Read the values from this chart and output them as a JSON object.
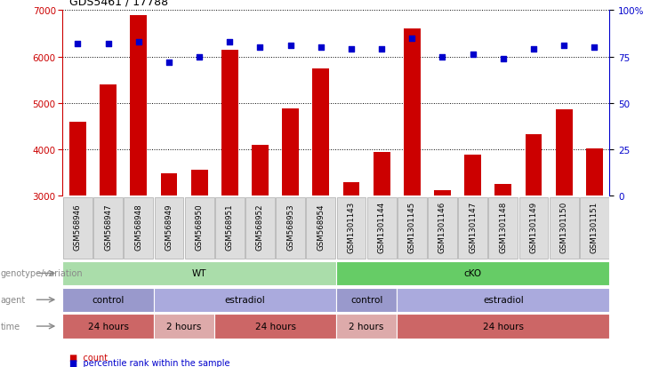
{
  "title": "GDS5461 / 17788",
  "samples": [
    "GSM568946",
    "GSM568947",
    "GSM568948",
    "GSM568949",
    "GSM568950",
    "GSM568951",
    "GSM568952",
    "GSM568953",
    "GSM568954",
    "GSM1301143",
    "GSM1301144",
    "GSM1301145",
    "GSM1301146",
    "GSM1301147",
    "GSM1301148",
    "GSM1301149",
    "GSM1301150",
    "GSM1301151"
  ],
  "counts": [
    4600,
    5400,
    6900,
    3480,
    3560,
    6150,
    4100,
    4880,
    5750,
    3280,
    3950,
    6600,
    3120,
    3880,
    3260,
    4320,
    4870,
    4020
  ],
  "percentiles": [
    82,
    82,
    83,
    72,
    75,
    83,
    80,
    81,
    80,
    79,
    79,
    85,
    75,
    76,
    74,
    79,
    81,
    80
  ],
  "bar_color": "#cc0000",
  "dot_color": "#0000cc",
  "ylim_left": [
    3000,
    7000
  ],
  "ylim_right": [
    0,
    100
  ],
  "yticks_left": [
    3000,
    4000,
    5000,
    6000,
    7000
  ],
  "yticks_right": [
    0,
    25,
    50,
    75,
    100
  ],
  "yticklabels_right": [
    "0",
    "25",
    "50",
    "75",
    "100%"
  ],
  "grid_values": [
    4000,
    5000,
    6000
  ],
  "xlim": [
    -0.5,
    17.5
  ],
  "annotation_rows": [
    {
      "label": "genotype/variation",
      "groups": [
        {
          "text": "WT",
          "start": 0,
          "end": 9,
          "color": "#aaddaa"
        },
        {
          "text": "cKO",
          "start": 9,
          "end": 18,
          "color": "#66cc66"
        }
      ]
    },
    {
      "label": "agent",
      "groups": [
        {
          "text": "control",
          "start": 0,
          "end": 3,
          "color": "#9999cc"
        },
        {
          "text": "estradiol",
          "start": 3,
          "end": 9,
          "color": "#aaaadd"
        },
        {
          "text": "control",
          "start": 9,
          "end": 11,
          "color": "#9999cc"
        },
        {
          "text": "estradiol",
          "start": 11,
          "end": 18,
          "color": "#aaaadd"
        }
      ]
    },
    {
      "label": "time",
      "groups": [
        {
          "text": "24 hours",
          "start": 0,
          "end": 3,
          "color": "#cc6666"
        },
        {
          "text": "2 hours",
          "start": 3,
          "end": 5,
          "color": "#ddaaaa"
        },
        {
          "text": "24 hours",
          "start": 5,
          "end": 9,
          "color": "#cc6666"
        },
        {
          "text": "2 hours",
          "start": 9,
          "end": 11,
          "color": "#ddaaaa"
        },
        {
          "text": "24 hours",
          "start": 11,
          "end": 18,
          "color": "#cc6666"
        }
      ]
    }
  ],
  "legend": [
    {
      "label": "count",
      "color": "#cc0000"
    },
    {
      "label": "percentile rank within the sample",
      "color": "#0000cc"
    }
  ],
  "sample_box_color": "#dddddd",
  "sample_box_edge": "#aaaaaa",
  "label_color": "#888888",
  "arrow_color": "#888888"
}
